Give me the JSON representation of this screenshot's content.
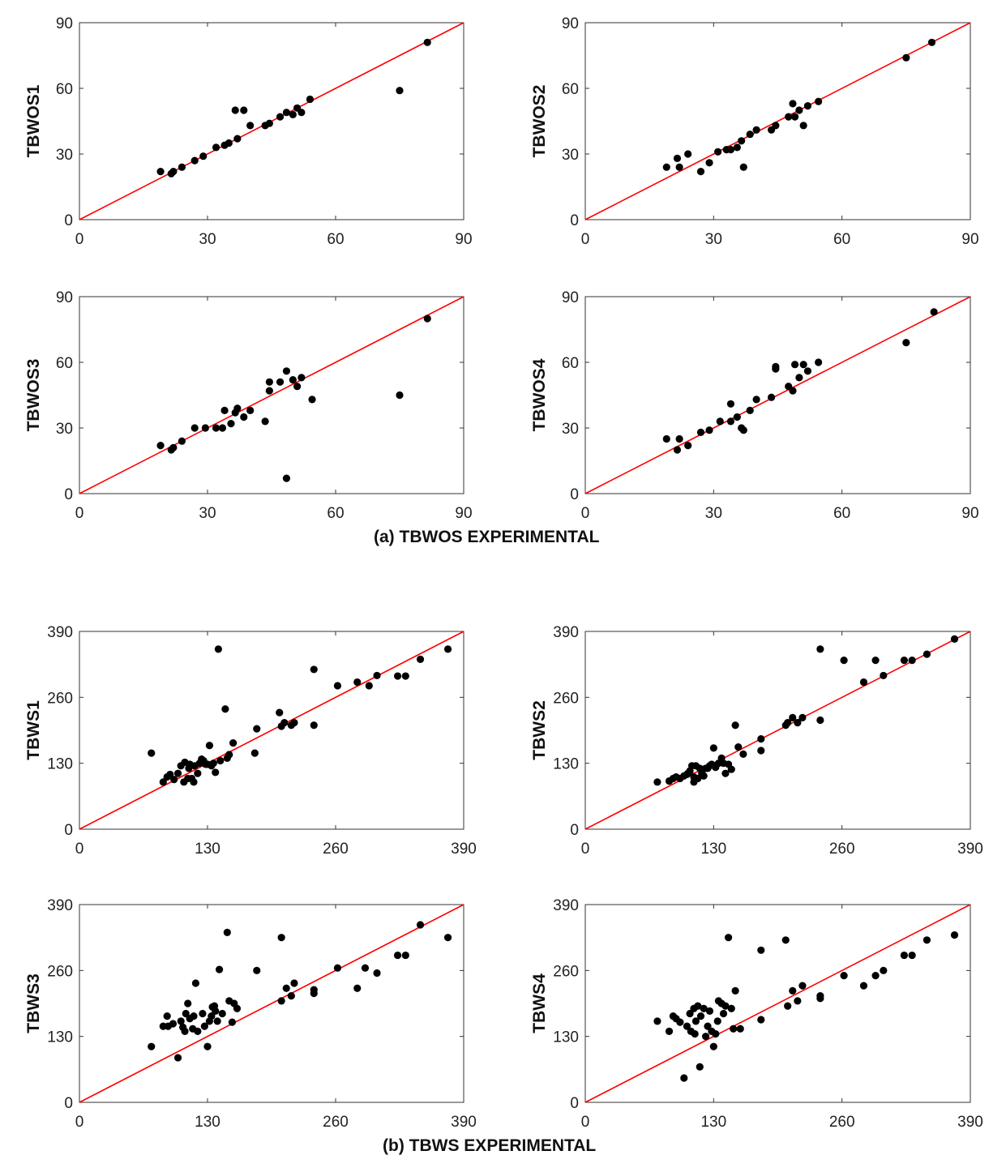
{
  "colors": {
    "points": "#000000",
    "line": "#ff0000",
    "axis": "#333333"
  },
  "group_titles": [
    "(a) TBWOS EXPERIMENTAL",
    "(b) TBWS EXPERIMENTAL"
  ],
  "chart_data": [
    {
      "type": "scatter",
      "group": 0,
      "panel": "top-left",
      "ylabel": "TBWOS1",
      "xlim": [
        0,
        90
      ],
      "ylim": [
        0,
        90
      ],
      "xticks": [
        0,
        30,
        60,
        90
      ],
      "yticks": [
        0,
        30,
        60,
        90
      ],
      "reference_line": "y=x",
      "x": [
        19,
        21.5,
        22,
        24,
        27,
        29,
        32,
        34,
        35,
        36.5,
        37,
        38.5,
        40,
        43.5,
        44.5,
        47,
        48.5,
        50,
        51,
        52,
        54,
        75,
        81.5
      ],
      "y": [
        22,
        21,
        22,
        24,
        27,
        29,
        33,
        34,
        35,
        50,
        37,
        50,
        43,
        43,
        44,
        47,
        49,
        48,
        51,
        49,
        55,
        59,
        81
      ]
    },
    {
      "type": "scatter",
      "group": 0,
      "panel": "top-right",
      "ylabel": "TBWOS2",
      "xlim": [
        0,
        90
      ],
      "ylim": [
        0,
        90
      ],
      "xticks": [
        0,
        30,
        60,
        90
      ],
      "yticks": [
        0,
        30,
        60,
        90
      ],
      "reference_line": "y=x",
      "x": [
        19,
        21.5,
        22,
        24,
        27,
        29,
        31,
        33,
        34,
        35.5,
        36.5,
        37,
        38.5,
        40,
        43.5,
        44.5,
        47.5,
        48.5,
        49,
        50,
        51,
        52,
        54.5,
        75,
        81
      ],
      "y": [
        24,
        28,
        24,
        30,
        22,
        26,
        31,
        32,
        32,
        33,
        36,
        24,
        39,
        41,
        41,
        43,
        47,
        53,
        47,
        50,
        43,
        52,
        54,
        74,
        81
      ]
    },
    {
      "type": "scatter",
      "group": 0,
      "panel": "bottom-left",
      "ylabel": "TBWOS3",
      "xlim": [
        0,
        90
      ],
      "ylim": [
        0,
        90
      ],
      "xticks": [
        0,
        30,
        60,
        90
      ],
      "yticks": [
        0,
        30,
        60,
        90
      ],
      "reference_line": "y=x",
      "x": [
        19,
        21.5,
        22,
        24,
        27,
        29.5,
        32,
        33.5,
        34,
        35.5,
        36.5,
        37,
        38.5,
        40,
        43.5,
        44.5,
        44.5,
        47,
        48.5,
        48.5,
        50,
        51,
        52,
        54.5,
        75,
        81.5
      ],
      "y": [
        22,
        20,
        21,
        24,
        30,
        30,
        30,
        30,
        38,
        32,
        37,
        39,
        35,
        38,
        33,
        47,
        51,
        51,
        56,
        7,
        52,
        49,
        53,
        43,
        45,
        80
      ]
    },
    {
      "type": "scatter",
      "group": 0,
      "panel": "bottom-right",
      "ylabel": "TBWOS4",
      "xlim": [
        0,
        90
      ],
      "ylim": [
        0,
        90
      ],
      "xticks": [
        0,
        30,
        60,
        90
      ],
      "yticks": [
        0,
        30,
        60,
        90
      ],
      "reference_line": "y=x",
      "x": [
        19,
        21.5,
        22,
        24,
        27,
        29,
        31.5,
        34,
        34,
        35.5,
        36.5,
        37,
        38.5,
        40,
        43.5,
        44.5,
        44.5,
        47.5,
        48.5,
        49,
        50,
        51,
        52,
        54.5,
        75,
        81.5
      ],
      "y": [
        25,
        20,
        25,
        22,
        28,
        29,
        33,
        33,
        41,
        35,
        30,
        29,
        38,
        43,
        44,
        57,
        58,
        49,
        47,
        59,
        53,
        59,
        56,
        60,
        69,
        83
      ]
    },
    {
      "type": "scatter",
      "group": 1,
      "panel": "top-left",
      "ylabel": "TBWS1",
      "xlim": [
        0,
        390
      ],
      "ylim": [
        0,
        390
      ],
      "xticks": [
        0,
        130,
        260,
        390
      ],
      "yticks": [
        0,
        130,
        260,
        390
      ],
      "reference_line": "y=x",
      "x": [
        73,
        85,
        89,
        92,
        96,
        100,
        103,
        106,
        107,
        110,
        111,
        112,
        114,
        116,
        117,
        120,
        122,
        124,
        126,
        128,
        130,
        132,
        134,
        136,
        138,
        141,
        143,
        148,
        150,
        152,
        156,
        178,
        180,
        203,
        205,
        208,
        215,
        218,
        238,
        238,
        262,
        282,
        294,
        302,
        323,
        331,
        346,
        374
      ],
      "y": [
        150,
        93,
        103,
        108,
        98,
        110,
        125,
        93,
        132,
        100,
        120,
        128,
        100,
        93,
        125,
        110,
        130,
        138,
        135,
        128,
        128,
        165,
        125,
        130,
        112,
        355,
        135,
        237,
        140,
        147,
        170,
        150,
        198,
        230,
        203,
        210,
        205,
        210,
        205,
        315,
        283,
        290,
        283,
        303,
        302,
        302,
        335,
        355
      ]
    },
    {
      "type": "scatter",
      "group": 1,
      "panel": "top-right",
      "ylabel": "TBWS2",
      "xlim": [
        0,
        390
      ],
      "ylim": [
        0,
        390
      ],
      "xticks": [
        0,
        130,
        260,
        390
      ],
      "yticks": [
        0,
        130,
        260,
        390
      ],
      "reference_line": "y=x",
      "x": [
        73,
        85,
        89,
        92,
        96,
        100,
        103,
        104,
        106,
        108,
        110,
        110,
        112,
        114,
        116,
        118,
        120,
        122,
        124,
        126,
        128,
        130,
        132,
        135,
        138,
        140,
        142,
        145,
        148,
        152,
        155,
        160,
        178,
        178,
        203,
        205,
        210,
        215,
        220,
        238,
        238,
        262,
        282,
        294,
        302,
        323,
        331,
        346,
        374
      ],
      "y": [
        93,
        95,
        100,
        103,
        100,
        105,
        108,
        110,
        115,
        125,
        93,
        103,
        125,
        100,
        120,
        110,
        105,
        120,
        120,
        125,
        128,
        160,
        122,
        130,
        140,
        130,
        110,
        128,
        118,
        205,
        162,
        148,
        155,
        178,
        205,
        210,
        220,
        210,
        220,
        215,
        355,
        333,
        290,
        333,
        303,
        333,
        333,
        345,
        375
      ]
    },
    {
      "type": "scatter",
      "group": 1,
      "panel": "bottom-left",
      "ylabel": "TBWS3",
      "xlim": [
        0,
        390
      ],
      "ylim": [
        0,
        390
      ],
      "xticks": [
        0,
        130,
        260,
        390
      ],
      "yticks": [
        0,
        130,
        260,
        390
      ],
      "reference_line": "y=x",
      "x": [
        73,
        85,
        89,
        90,
        95,
        100,
        103,
        105,
        107,
        108,
        110,
        112,
        115,
        116,
        118,
        120,
        125,
        127,
        130,
        132,
        134,
        135,
        137,
        138,
        140,
        142,
        145,
        150,
        152,
        155,
        157,
        160,
        180,
        205,
        205,
        210,
        215,
        218,
        238,
        238,
        262,
        282,
        290,
        302,
        323,
        331,
        346,
        374
      ],
      "y": [
        110,
        150,
        170,
        150,
        155,
        88,
        160,
        148,
        140,
        175,
        195,
        165,
        145,
        170,
        235,
        140,
        175,
        150,
        110,
        160,
        170,
        188,
        190,
        180,
        160,
        262,
        175,
        335,
        200,
        158,
        195,
        185,
        260,
        200,
        325,
        225,
        210,
        235,
        222,
        215,
        265,
        225,
        265,
        255,
        290,
        290,
        350,
        325
      ]
    },
    {
      "type": "scatter",
      "group": 1,
      "panel": "bottom-right",
      "ylabel": "TBWS4",
      "xlim": [
        0,
        390
      ],
      "ylim": [
        0,
        390
      ],
      "xticks": [
        0,
        130,
        260,
        390
      ],
      "yticks": [
        0,
        130,
        260,
        390
      ],
      "reference_line": "y=x",
      "x": [
        73,
        85,
        89,
        92,
        96,
        100,
        103,
        106,
        107,
        110,
        111,
        112,
        114,
        116,
        117,
        120,
        122,
        124,
        126,
        128,
        130,
        132,
        134,
        135,
        138,
        140,
        142,
        145,
        148,
        150,
        152,
        157,
        178,
        178,
        203,
        205,
        210,
        215,
        220,
        238,
        238,
        262,
        282,
        294,
        302,
        323,
        331,
        346,
        374
      ],
      "y": [
        160,
        140,
        170,
        165,
        158,
        48,
        150,
        175,
        140,
        185,
        135,
        160,
        190,
        70,
        170,
        185,
        130,
        150,
        180,
        140,
        110,
        135,
        160,
        200,
        195,
        175,
        190,
        325,
        185,
        145,
        220,
        145,
        300,
        163,
        320,
        190,
        220,
        200,
        230,
        205,
        210,
        250,
        230,
        250,
        260,
        290,
        290,
        320,
        330
      ]
    }
  ]
}
